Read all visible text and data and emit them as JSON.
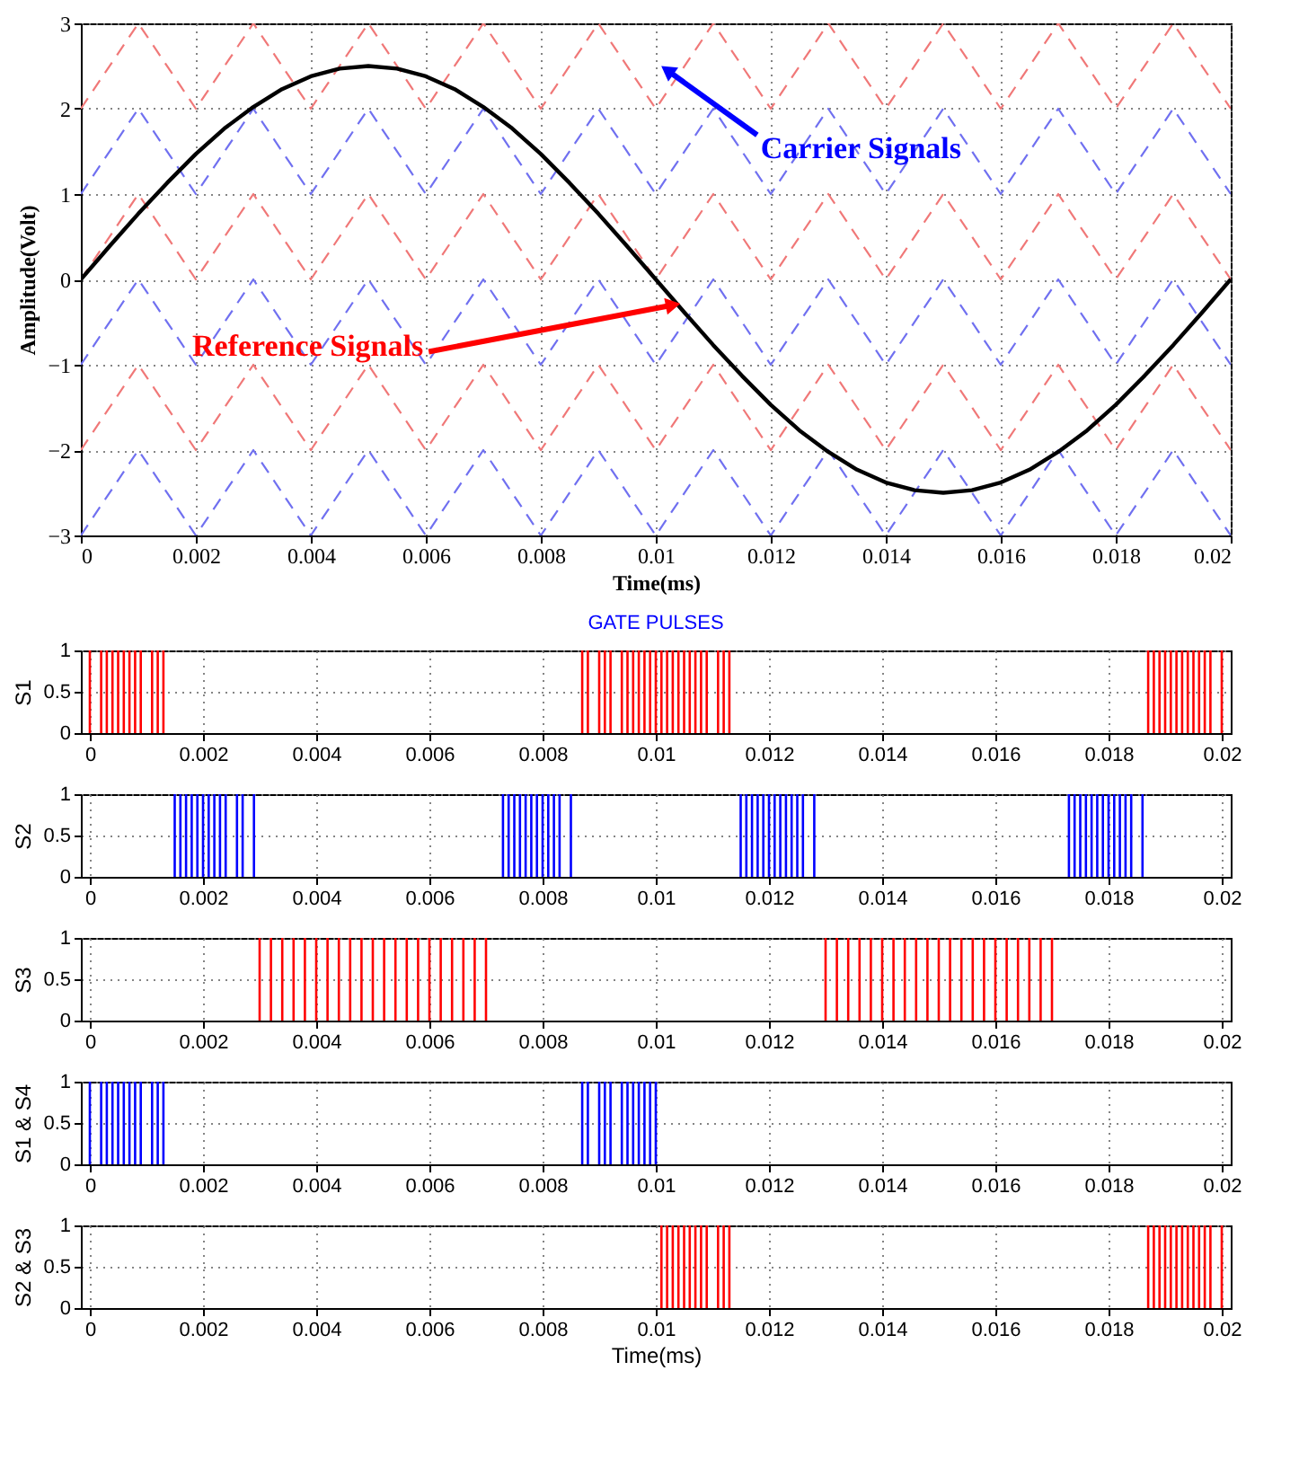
{
  "chart_data": [
    {
      "type": "line",
      "xlabel": "Time(ms)",
      "ylabel": "Amplitude(Volt)",
      "xlim": [
        0,
        0.02
      ],
      "xticks": [
        0,
        0.002,
        0.004,
        0.006,
        0.008,
        0.01,
        0.012,
        0.014,
        0.016,
        0.018,
        0.02
      ],
      "ylim": [
        -3,
        3
      ],
      "yticks": [
        -3,
        -2,
        -1,
        0,
        1,
        2,
        3
      ],
      "grid": true,
      "x": [
        0,
        0.001,
        0.002,
        0.003,
        0.004,
        0.005,
        0.006,
        0.007,
        0.008,
        0.009,
        0.01,
        0.011,
        0.012,
        0.013,
        0.014,
        0.015,
        0.016,
        0.017,
        0.018,
        0.019,
        0.02
      ],
      "annotations": [
        {
          "text": "Carrier Signals",
          "x": 0.0102,
          "y": 2.45
        },
        {
          "text": "Reference Signals",
          "x": 0.0103,
          "y": -0.3
        }
      ],
      "series": [
        {
          "color": "#f07878",
          "line_style": "dashed",
          "values": [
            2,
            3,
            2,
            3,
            2,
            3,
            2,
            3,
            2,
            3,
            2,
            3,
            2,
            3,
            2,
            3,
            2,
            3,
            2,
            3,
            2
          ]
        },
        {
          "color": "#7070f0",
          "line_style": "dashed",
          "values": [
            1,
            2,
            1,
            2,
            1,
            2,
            1,
            2,
            1,
            2,
            1,
            2,
            1,
            2,
            1,
            2,
            1,
            2,
            1,
            2,
            1
          ]
        },
        {
          "color": "#f07878",
          "line_style": "dashed",
          "values": [
            0,
            1,
            0,
            1,
            0,
            1,
            0,
            1,
            0,
            1,
            0,
            1,
            0,
            1,
            0,
            1,
            0,
            1,
            0,
            1,
            0
          ]
        },
        {
          "color": "#7070f0",
          "line_style": "dashed",
          "values": [
            -1,
            0,
            -1,
            0,
            -1,
            0,
            -1,
            0,
            -1,
            0,
            -1,
            0,
            -1,
            0,
            -1,
            0,
            -1,
            0,
            -1,
            0,
            -1
          ]
        },
        {
          "color": "#f07878",
          "line_style": "dashed",
          "values": [
            -2,
            -1,
            -2,
            -1,
            -2,
            -1,
            -2,
            -1,
            -2,
            -1,
            -2,
            -1,
            -2,
            -1,
            -2,
            -1,
            -2,
            -1,
            -2,
            -1,
            -2
          ]
        },
        {
          "color": "#7070f0",
          "line_style": "dashed",
          "values": [
            -3,
            -2,
            -3,
            -2,
            -3,
            -2,
            -3,
            -2,
            -3,
            -2,
            -3,
            -2,
            -3,
            -2,
            -3,
            -2,
            -3,
            -2,
            -3,
            -2,
            -3
          ]
        },
        {
          "color": "#000000",
          "line_style": "solid",
          "x": [
            0,
            0.0005,
            0.001,
            0.0015,
            0.002,
            0.0025,
            0.003,
            0.0035,
            0.004,
            0.0045,
            0.005,
            0.0055,
            0.006,
            0.0065,
            0.007,
            0.0075,
            0.008,
            0.0085,
            0.009,
            0.0095,
            0.01,
            0.0105,
            0.011,
            0.0115,
            0.012,
            0.0125,
            0.013,
            0.0135,
            0.014,
            0.0145,
            0.015,
            0.0155,
            0.016,
            0.0165,
            0.017,
            0.0175,
            0.018,
            0.0185,
            0.019,
            0.0195,
            0.02
          ],
          "values": [
            0,
            0.39,
            0.77,
            1.13,
            1.47,
            1.77,
            2.02,
            2.23,
            2.38,
            2.47,
            2.5,
            2.47,
            2.38,
            2.23,
            2.02,
            1.77,
            1.47,
            1.13,
            0.77,
            0.39,
            0,
            -0.39,
            -0.77,
            -1.13,
            -1.47,
            -1.77,
            -2.02,
            -2.23,
            -2.38,
            -2.47,
            -2.5,
            -2.47,
            -2.38,
            -2.23,
            -2.02,
            -1.77,
            -1.47,
            -1.13,
            -0.77,
            -0.39,
            0
          ]
        }
      ]
    },
    {
      "type": "bar",
      "title": "GATE PULSES",
      "ylabel": "S1",
      "xlim": [
        0,
        0.02
      ],
      "xticks": [
        0,
        0.002,
        0.004,
        0.006,
        0.008,
        0.01,
        0.012,
        0.014,
        0.016,
        0.018,
        0.02
      ],
      "ylim": [
        0,
        1
      ],
      "yticks": [
        0,
        0.5,
        1
      ],
      "grid": true,
      "series": [
        {
          "color": "#ff0000",
          "x": [
            0,
            0.0002,
            0.0003,
            0.0004,
            0.0005,
            0.0006,
            0.0007,
            0.0008,
            0.0009,
            0.0011,
            0.0012,
            0.0013,
            0.0087,
            0.0088,
            0.009,
            0.0091,
            0.0092,
            0.0094,
            0.0095,
            0.0096,
            0.0097,
            0.0098,
            0.0099,
            0.01,
            0.0101,
            0.0102,
            0.0103,
            0.0104,
            0.0105,
            0.0106,
            0.0107,
            0.0108,
            0.0109,
            0.0111,
            0.0112,
            0.0113,
            0.0187,
            0.0188,
            0.0189,
            0.019,
            0.0191,
            0.0192,
            0.0193,
            0.0194,
            0.0195,
            0.0196,
            0.0197,
            0.0198,
            0.02
          ],
          "values": [
            1,
            1,
            1,
            1,
            1,
            1,
            1,
            1,
            1,
            1,
            1,
            1,
            1,
            1,
            1,
            1,
            1,
            1,
            1,
            1,
            1,
            1,
            1,
            1,
            1,
            1,
            1,
            1,
            1,
            1,
            1,
            1,
            1,
            1,
            1,
            1,
            1,
            1,
            1,
            1,
            1,
            1,
            1,
            1,
            1,
            1,
            1,
            1,
            1
          ]
        }
      ]
    },
    {
      "type": "bar",
      "ylabel": "S2",
      "xlim": [
        0,
        0.02
      ],
      "xticks": [
        0,
        0.002,
        0.004,
        0.006,
        0.008,
        0.01,
        0.012,
        0.014,
        0.016,
        0.018,
        0.02
      ],
      "ylim": [
        0,
        1
      ],
      "yticks": [
        0,
        0.5,
        1
      ],
      "grid": true,
      "series": [
        {
          "color": "#0000ff",
          "x": [
            0.0015,
            0.0016,
            0.0017,
            0.0018,
            0.0019,
            0.002,
            0.0021,
            0.0022,
            0.0023,
            0.0024,
            0.0026,
            0.0027,
            0.0029,
            0.0073,
            0.0074,
            0.0075,
            0.0076,
            0.0077,
            0.0078,
            0.0079,
            0.008,
            0.0081,
            0.0082,
            0.0083,
            0.0085,
            0.0115,
            0.0116,
            0.0117,
            0.0118,
            0.0119,
            0.012,
            0.0121,
            0.0122,
            0.0123,
            0.0124,
            0.0125,
            0.0126,
            0.0128,
            0.0173,
            0.0174,
            0.0175,
            0.0176,
            0.0177,
            0.0178,
            0.0179,
            0.018,
            0.0181,
            0.0182,
            0.0183,
            0.0184,
            0.0186
          ],
          "values": [
            1,
            1,
            1,
            1,
            1,
            1,
            1,
            1,
            1,
            1,
            1,
            1,
            1,
            1,
            1,
            1,
            1,
            1,
            1,
            1,
            1,
            1,
            1,
            1,
            1,
            1,
            1,
            1,
            1,
            1,
            1,
            1,
            1,
            1,
            1,
            1,
            1,
            1,
            1,
            1,
            1,
            1,
            1,
            1,
            1,
            1,
            1,
            1,
            1,
            1,
            1
          ]
        }
      ]
    },
    {
      "type": "bar",
      "ylabel": "S3",
      "xlim": [
        0,
        0.02
      ],
      "xticks": [
        0,
        0.002,
        0.004,
        0.006,
        0.008,
        0.01,
        0.012,
        0.014,
        0.016,
        0.018,
        0.02
      ],
      "ylim": [
        0,
        1
      ],
      "yticks": [
        0,
        0.5,
        1
      ],
      "grid": true,
      "series": [
        {
          "color": "#ff0000",
          "x": [
            0.003,
            0.0032,
            0.0034,
            0.0036,
            0.0038,
            0.004,
            0.0042,
            0.0044,
            0.0046,
            0.0048,
            0.005,
            0.0052,
            0.0054,
            0.0056,
            0.0058,
            0.006,
            0.0062,
            0.0064,
            0.0066,
            0.0068,
            0.007,
            0.013,
            0.0132,
            0.0134,
            0.0136,
            0.0138,
            0.014,
            0.0142,
            0.0144,
            0.0146,
            0.0148,
            0.015,
            0.0152,
            0.0154,
            0.0156,
            0.0158,
            0.016,
            0.0162,
            0.0164,
            0.0166,
            0.0168,
            0.017
          ],
          "values": [
            1,
            1,
            1,
            1,
            1,
            1,
            1,
            1,
            1,
            1,
            1,
            1,
            1,
            1,
            1,
            1,
            1,
            1,
            1,
            1,
            1,
            1,
            1,
            1,
            1,
            1,
            1,
            1,
            1,
            1,
            1,
            1,
            1,
            1,
            1,
            1,
            1,
            1,
            1,
            1,
            1,
            1
          ]
        }
      ]
    },
    {
      "type": "bar",
      "ylabel": "S1 & S4",
      "xlim": [
        0,
        0.02
      ],
      "xticks": [
        0,
        0.002,
        0.004,
        0.006,
        0.008,
        0.01,
        0.012,
        0.014,
        0.016,
        0.018,
        0.02
      ],
      "ylim": [
        0,
        1
      ],
      "yticks": [
        0,
        0.5,
        1
      ],
      "grid": true,
      "series": [
        {
          "color": "#0000ff",
          "x": [
            0,
            0.0002,
            0.0003,
            0.0004,
            0.0005,
            0.0006,
            0.0007,
            0.0008,
            0.0009,
            0.0011,
            0.0012,
            0.0013,
            0.0087,
            0.0088,
            0.009,
            0.0091,
            0.0092,
            0.0094,
            0.0095,
            0.0096,
            0.0097,
            0.0098,
            0.0099,
            0.01
          ],
          "values": [
            1,
            1,
            1,
            1,
            1,
            1,
            1,
            1,
            1,
            1,
            1,
            1,
            1,
            1,
            1,
            1,
            1,
            1,
            1,
            1,
            1,
            1,
            1,
            1
          ]
        }
      ]
    },
    {
      "type": "bar",
      "ylabel": "S2 & S3",
      "xlabel": "Time(ms)",
      "xlim": [
        0,
        0.02
      ],
      "xticks": [
        0,
        0.002,
        0.004,
        0.006,
        0.008,
        0.01,
        0.012,
        0.014,
        0.016,
        0.018,
        0.02
      ],
      "ylim": [
        0,
        1
      ],
      "yticks": [
        0,
        0.5,
        1
      ],
      "grid": true,
      "series": [
        {
          "color": "#ff0000",
          "x": [
            0.0101,
            0.0102,
            0.0103,
            0.0104,
            0.0105,
            0.0106,
            0.0107,
            0.0108,
            0.0109,
            0.0111,
            0.0112,
            0.0113,
            0.0187,
            0.0188,
            0.0189,
            0.019,
            0.0191,
            0.0192,
            0.0193,
            0.0194,
            0.0195,
            0.0196,
            0.0197,
            0.0198,
            0.02
          ],
          "values": [
            1,
            1,
            1,
            1,
            1,
            1,
            1,
            1,
            1,
            1,
            1,
            1,
            1,
            1,
            1,
            1,
            1,
            1,
            1,
            1,
            1,
            1,
            1,
            1,
            1
          ]
        }
      ]
    }
  ]
}
